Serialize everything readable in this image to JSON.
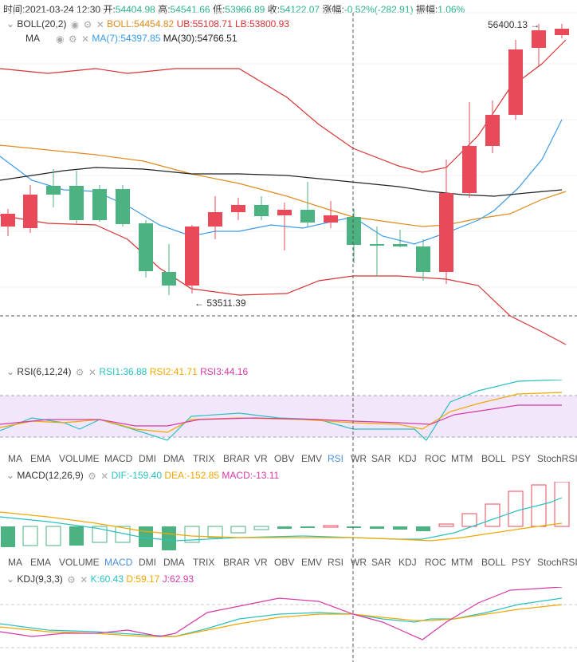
{
  "header": {
    "time_label": "时间:",
    "time": "2021-03-24 12:30",
    "open_label": "开:",
    "open": "54404.98",
    "high_label": "高:",
    "high": "54541.66",
    "low_label": "低:",
    "low": "53966.89",
    "close_label": "收:",
    "close": "54122.07",
    "change_label": "涨幅:",
    "change": "-0.52%(-282.91)",
    "amp_label": "振幅:",
    "amp": "1.06%"
  },
  "boll": {
    "name": "BOLL(20,2)",
    "boll": "BOLL:54454.82",
    "ub": "UB:55108.71",
    "lb": "LB:53800.93"
  },
  "ma": {
    "name": "MA",
    "ma7": "MA(7):54397.85",
    "ma30": "MA(30):54766.51"
  },
  "price_labels": {
    "high": "56400.13",
    "low": "53511.39"
  },
  "rsi": {
    "name": "RSI(6,12,24)",
    "rsi1": "RSI1:36.88",
    "rsi2": "RSI2:41.71",
    "rsi3": "RSI3:44.16"
  },
  "macd": {
    "name": "MACD(12,26,9)",
    "dif": "DIF:-159.40",
    "dea": "DEA:-152.85",
    "macd": "MACD:-13.11"
  },
  "kdj": {
    "name": "KDJ(9,3,3)",
    "k": "K:60.43",
    "d": "D:59.17",
    "j": "J:62.93"
  },
  "tabs_1": [
    "MA",
    "EMA",
    "VOLUME",
    "MACD",
    "DMI",
    "DMA",
    "TRIX",
    "BRAR",
    "VR",
    "OBV",
    "EMV",
    "RSI",
    "WR",
    "SAR",
    "KDJ",
    "ROC",
    "MTM",
    "BOLL",
    "PSY",
    "StochRSI"
  ],
  "tabs_1_active": "RSI",
  "tabs_2": [
    "MA",
    "EMA",
    "VOLUME",
    "MACD",
    "DMI",
    "DMA",
    "TRIX",
    "BRAR",
    "VR",
    "OBV",
    "EMV",
    "RSI",
    "WR",
    "SAR",
    "KDJ",
    "ROC",
    "MTM",
    "BOLL",
    "PSY",
    "StochRSI"
  ],
  "tabs_2_active": "MACD",
  "colors": {
    "up": "#e84a5a",
    "down": "#4cb281",
    "boll_mid": "#e08a1e",
    "boll_band": "#d83434",
    "ma7": "#3a9ae8",
    "ma30": "#222222",
    "rsi1": "#2bc0c0",
    "rsi2": "#f0a800",
    "rsi3": "#d63aa8",
    "macd_dif": "#2bc0c0",
    "macd_dea": "#f0a800",
    "kdj_k": "#2bc0c0",
    "kdj_d": "#f0a800",
    "kdj_j": "#d63aa8",
    "active_tab": "#4a90d9"
  }
}
